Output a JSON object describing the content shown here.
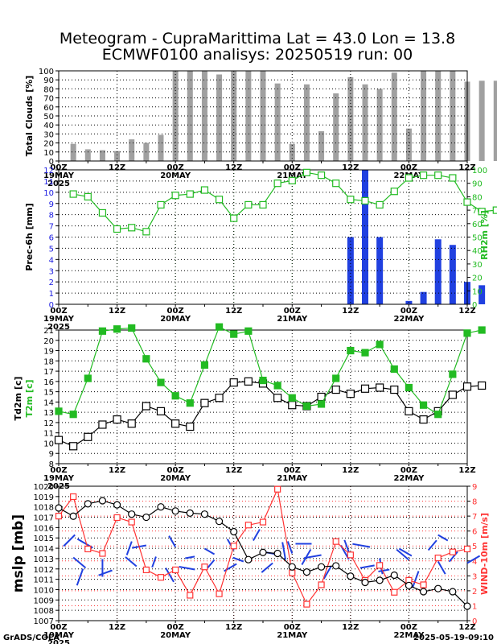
{
  "title_line1": "Meteogram - CupraMarittima Lat = 43.0 Lon = 13.8",
  "title_line2": "ECMWF0100 analisys: 20250519 run: 00",
  "footer_left": "GrADS/COLA",
  "footer_right": "2025-05-19-09:10",
  "x_axis": {
    "tick_labels": [
      "00Z",
      "12Z",
      "00Z",
      "12Z",
      "00Z",
      "12Z",
      "00Z",
      "12Z"
    ],
    "date_labels": [
      "19MAY",
      "20MAY",
      "21MAY",
      "22MAY"
    ],
    "year_label": "2025"
  },
  "colors": {
    "clouds": "#a0a0a0",
    "precip": "#2040e0",
    "rh": "#22bb22",
    "t2m": "#22bb22",
    "td2m": "#000000",
    "mslp": "#000000",
    "wind": "#ff3333",
    "barbs": "#2040e0"
  },
  "chart_data": [
    {
      "type": "bar",
      "ylabel": "Total Clouds [%]",
      "ylim": [
        0,
        100
      ],
      "yticks": [
        0,
        10,
        20,
        30,
        40,
        50,
        60,
        70,
        80,
        90,
        100
      ],
      "values": [
        19,
        13,
        12,
        11,
        24,
        20,
        29,
        100,
        100,
        100,
        96,
        100,
        100,
        100,
        86,
        19,
        85,
        33,
        75,
        93,
        85,
        80,
        98,
        36,
        100,
        100,
        100,
        88,
        89,
        89
      ]
    },
    {
      "type": "bar",
      "ylabel": "Prec-6h [mm]",
      "ylim": [
        0,
        12
      ],
      "yticks": [
        0,
        1,
        2,
        3,
        4,
        5,
        6,
        7,
        8,
        9,
        10,
        11,
        12
      ],
      "precip_values": [
        0,
        0,
        0,
        0,
        0,
        0,
        0,
        0,
        0,
        0,
        0,
        0,
        0,
        0,
        0,
        0,
        0,
        0,
        0,
        0,
        6.0,
        12.0,
        6.0,
        0,
        0.3,
        1.1,
        5.8,
        5.3,
        2.0,
        1.7,
        0,
        0,
        0,
        0,
        0,
        0
      ],
      "y2label": "RH2m [%]",
      "y2lim": [
        0,
        100
      ],
      "y2ticks": [
        0,
        10,
        20,
        30,
        40,
        50,
        60,
        70,
        80,
        90,
        100
      ],
      "rh_values": [
        82,
        80,
        68,
        56,
        57,
        54,
        74,
        81,
        82,
        85,
        78,
        64,
        74,
        74,
        90,
        92,
        98,
        96,
        90,
        78,
        77,
        74,
        84,
        94,
        96,
        96,
        94,
        76,
        69,
        70
      ]
    },
    {
      "type": "line",
      "ylabel": "Td2m [c]",
      "ylabel2": "T2m [c]",
      "ylim": [
        8,
        21
      ],
      "yticks": [
        8,
        9,
        10,
        11,
        12,
        13,
        14,
        15,
        16,
        17,
        18,
        19,
        20,
        21
      ],
      "series": [
        {
          "name": "T2m [c]",
          "values": [
            13.1,
            12.8,
            16.3,
            20.9,
            21.1,
            21.2,
            18.2,
            15.9,
            14.6,
            13.9,
            17.6,
            21.3,
            20.6,
            20.9,
            16.1,
            15.6,
            14.4,
            13.6,
            13.8,
            16.3,
            19.0,
            18.8,
            19.6,
            17.2,
            15.4,
            13.7,
            12.8,
            16.7,
            20.7,
            21.0
          ]
        },
        {
          "name": "Td2m [c]",
          "values": [
            10.3,
            9.7,
            10.6,
            11.8,
            12.3,
            11.9,
            13.6,
            13.1,
            11.9,
            11.6,
            13.9,
            14.4,
            15.9,
            16.0,
            15.8,
            14.4,
            13.7,
            13.6,
            14.5,
            15.2,
            14.8,
            15.3,
            15.4,
            15.2,
            13.1,
            12.3,
            13.1,
            14.7,
            15.5,
            15.6
          ]
        }
      ]
    },
    {
      "type": "line",
      "ylabel": "mslp [mb]",
      "ylim": [
        1007,
        1020
      ],
      "yticks": [
        1007,
        1008,
        1009,
        1010,
        1011,
        1012,
        1013,
        1014,
        1015,
        1016,
        1017,
        1018,
        1019,
        1020
      ],
      "y2label": "WIND-10m [m/s]",
      "y2lim": [
        0,
        9
      ],
      "y2ticks": [
        0,
        1,
        2,
        3,
        4,
        5,
        6,
        7,
        8,
        9
      ],
      "series": [
        {
          "name": "mslp [mb]",
          "values": [
            1017.9,
            1017.1,
            1018.3,
            1018.6,
            1018.2,
            1017.3,
            1017.0,
            1018.0,
            1017.6,
            1017.4,
            1017.3,
            1016.6,
            1015.6,
            1012.9,
            1013.6,
            1013.5,
            1012.2,
            1011.7,
            1012.2,
            1012.3,
            1011.3,
            1010.7,
            1010.9,
            1011.4,
            1010.4,
            1009.8,
            1010.1,
            1009.8,
            1008.4
          ]
        },
        {
          "name": "WIND-10m [m/s]",
          "values": [
            7.0,
            8.3,
            4.8,
            4.5,
            6.9,
            6.6,
            3.4,
            2.9,
            3.4,
            1.7,
            3.6,
            1.8,
            5.0,
            6.4,
            6.6,
            8.8,
            3.2,
            1.1,
            2.4,
            5.3,
            4.4,
            2.7,
            3.7,
            1.9,
            2.7,
            2.4,
            4.2,
            4.6,
            4.8
          ]
        }
      ]
    }
  ]
}
